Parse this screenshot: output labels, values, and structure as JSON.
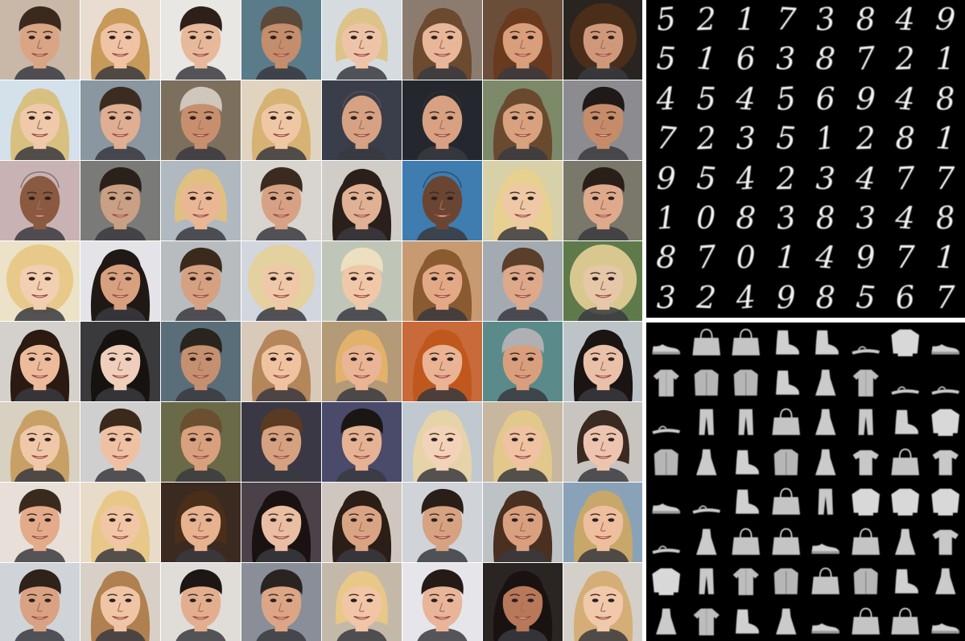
{
  "mnist_digits": [
    [
      "5",
      "2",
      "1",
      "7",
      "3",
      "8",
      "4",
      "9"
    ],
    [
      "5",
      "1",
      "6",
      "3",
      "8",
      "7",
      "2",
      "1"
    ],
    [
      "4",
      "5",
      "4",
      "5",
      "6",
      "9",
      "4",
      "8"
    ],
    [
      "7",
      "2",
      "3",
      "5",
      "1",
      "2",
      "8",
      "1"
    ],
    [
      "9",
      "5",
      "4",
      "2",
      "3",
      "4",
      "7",
      "7"
    ],
    [
      "1",
      "0",
      "8",
      "3",
      "8",
      "3",
      "4",
      "8"
    ],
    [
      "8",
      "7",
      "0",
      "1",
      "4",
      "9",
      "7",
      "1"
    ],
    [
      "3",
      "2",
      "4",
      "9",
      "8",
      "5",
      "6",
      "7"
    ]
  ],
  "fashion_items": [
    [
      "sneaker-icon",
      "bag-icon",
      "bag-icon",
      "ankle-boot-icon",
      "ankle-boot-icon",
      "sandal-icon",
      "pullover-icon",
      "sneaker-icon"
    ],
    [
      "shirt-icon",
      "coat-icon",
      "coat-icon",
      "ankle-boot-icon",
      "dress-icon",
      "shirt-icon",
      "sandal-icon",
      "sandal-icon"
    ],
    [
      "sandal-icon",
      "trouser-icon",
      "trouser-icon",
      "bag-icon",
      "dress-icon",
      "trouser-icon",
      "ankle-boot-icon",
      "pullover-icon"
    ],
    [
      "coat-icon",
      "dress-icon",
      "ankle-boot-icon",
      "coat-icon",
      "dress-icon",
      "tshirt-icon",
      "bag-icon",
      "tshirt-icon"
    ],
    [
      "sneaker-icon",
      "sandal-icon",
      "ankle-boot-icon",
      "bag-icon",
      "trouser-icon",
      "pullover-icon",
      "pullover-icon",
      "pullover-icon"
    ],
    [
      "sandal-icon",
      "dress-icon",
      "bag-icon",
      "bag-icon",
      "sneaker-icon",
      "bag-icon",
      "dress-icon",
      "tshirt-icon"
    ],
    [
      "pullover-icon",
      "trouser-icon",
      "shirt-icon",
      "coat-icon",
      "bag-icon",
      "coat-icon",
      "ankle-boot-icon",
      "dress-icon"
    ],
    [
      "dress-icon",
      "shirt-icon",
      "ankle-boot-icon",
      "dress-icon",
      "sneaker-icon",
      "bag-icon",
      "bag-icon",
      "sneaker-icon"
    ]
  ],
  "faces": [
    {
      "bg": "#c9b8a8",
      "skin": "#d9a585",
      "hair": "#3a2a1e",
      "hair_style": "short"
    },
    {
      "bg": "#e8ddd0",
      "skin": "#efc3a4",
      "hair": "#c79a5a",
      "hair_style": "long"
    },
    {
      "bg": "#e9e7e3",
      "skin": "#e7b99a",
      "hair": "#2e2019",
      "hair_style": "short"
    },
    {
      "bg": "#5a7c8a",
      "skin": "#c48d6c",
      "hair": "#5b4a3a",
      "hair_style": "short"
    },
    {
      "bg": "#d6dbe0",
      "skin": "#eec4a8",
      "hair": "#dcc488",
      "hair_style": "bob"
    },
    {
      "bg": "#8c7c70",
      "skin": "#e8b698",
      "hair": "#6b4a30",
      "hair_style": "long"
    },
    {
      "bg": "#6a4e3a",
      "skin": "#d99e7a",
      "hair": "#6a3a1e",
      "hair_style": "long"
    },
    {
      "bg": "#2a2420",
      "skin": "#d0987a",
      "hair": "#4a2e1a",
      "hair_style": "curly"
    },
    {
      "bg": "#d4e0ea",
      "skin": "#efc9a9",
      "hair": "#d8c080",
      "hair_style": "long"
    },
    {
      "bg": "#8a96a0",
      "skin": "#e0ae90",
      "hair": "#3b2c22",
      "hair_style": "short"
    },
    {
      "bg": "#7d6f5e",
      "skin": "#c88f6e",
      "hair": "#cfc6bc",
      "hair_style": "short"
    },
    {
      "bg": "#e0d4c0",
      "skin": "#f0c7a5",
      "hair": "#d7b373",
      "hair_style": "long"
    },
    {
      "bg": "#3a3e4a",
      "skin": "#d6a283",
      "hair": "#8a6a52",
      "hair_style": "bald"
    },
    {
      "bg": "#24282e",
      "skin": "#d7a182",
      "hair": "#4a3728",
      "hair_style": "bald"
    },
    {
      "bg": "#7c8a6a",
      "skin": "#d8a27e",
      "hair": "#6a4a2e",
      "hair_style": "long"
    },
    {
      "bg": "#8c8c90",
      "skin": "#c68c6a",
      "hair": "#1f1a18",
      "hair_style": "short"
    },
    {
      "bg": "#c8b2b4",
      "skin": "#8a5a40",
      "hair": "#1a1410",
      "hair_style": "bald"
    },
    {
      "bg": "#7a7a78",
      "skin": "#caa084",
      "hair": "#2b211b",
      "hair_style": "short"
    },
    {
      "bg": "#b0b8c0",
      "skin": "#eab795",
      "hair": "#e0c080",
      "hair_style": "bob"
    },
    {
      "bg": "#d8d4d0",
      "skin": "#d7a283",
      "hair": "#3a2a20",
      "hair_style": "short"
    },
    {
      "bg": "#d0ccc8",
      "skin": "#e0b194",
      "hair": "#2a1f1a",
      "hair_style": "long"
    },
    {
      "bg": "#3f7cb0",
      "skin": "#6a4532",
      "hair": "#120e0c",
      "hair_style": "bald"
    },
    {
      "bg": "#d8d0a8",
      "skin": "#efc9a5",
      "hair": "#e8d090",
      "hair_style": "long"
    },
    {
      "bg": "#7a786a",
      "skin": "#dfaa8c",
      "hair": "#2a1f18",
      "hair_style": "short"
    },
    {
      "bg": "#ece2c8",
      "skin": "#f2cfb0",
      "hair": "#e8c98a",
      "hair_style": "curly"
    },
    {
      "bg": "#e4e4e8",
      "skin": "#d7a07e",
      "hair": "#1f1815",
      "hair_style": "long"
    },
    {
      "bg": "#b8bcbf",
      "skin": "#d5a180",
      "hair": "#3a2a1c",
      "hair_style": "short"
    },
    {
      "bg": "#d2d6de",
      "skin": "#efc8a8",
      "hair": "#e4d1a0",
      "hair_style": "curly"
    },
    {
      "bg": "#bfc6b8",
      "skin": "#f0c8a8",
      "hair": "#ede0c0",
      "hair_style": "short"
    },
    {
      "bg": "#c89a72",
      "skin": "#e3a986",
      "hair": "#8a5a30",
      "hair_style": "long"
    },
    {
      "bg": "#a3aab2",
      "skin": "#dea98a",
      "hair": "#5a3f2a",
      "hair_style": "short"
    },
    {
      "bg": "#5f7a4a",
      "skin": "#e6c7a8",
      "hair": "#d8c890",
      "hair_style": "curly"
    },
    {
      "bg": "#d4d1cc",
      "skin": "#ebbb9c",
      "hair": "#2a1a12",
      "hair_style": "long"
    },
    {
      "bg": "#3a3a3c",
      "skin": "#efcfbb",
      "hair": "#151210",
      "hair_style": "long"
    },
    {
      "bg": "#5a6e7a",
      "skin": "#c59070",
      "hair": "#2a241e",
      "hair_style": "short"
    },
    {
      "bg": "#d8c9b8",
      "skin": "#f0c3a0",
      "hair": "#b4865a",
      "hair_style": "long"
    },
    {
      "bg": "#b59a78",
      "skin": "#eab595",
      "hair": "#e2b26a",
      "hair_style": "bob"
    },
    {
      "bg": "#c86a3a",
      "skin": "#eab393",
      "hair": "#c0581e",
      "hair_style": "long"
    },
    {
      "bg": "#5a8a8a",
      "skin": "#d99f7c",
      "hair": "#aeb0b4",
      "hair_style": "short"
    },
    {
      "bg": "#bcc4c8",
      "skin": "#e9c0a8",
      "hair": "#1a1412",
      "hair_style": "long"
    },
    {
      "bg": "#d8d0c0",
      "skin": "#f0c8a8",
      "hair": "#c8a066",
      "hair_style": "long"
    },
    {
      "bg": "#cfcfcf",
      "skin": "#eec1a2",
      "hair": "#3b2a1c",
      "hair_style": "short"
    },
    {
      "bg": "#6a6a48",
      "skin": "#d8a07c",
      "hair": "#6a5030",
      "hair_style": "short"
    },
    {
      "bg": "#3a3844",
      "skin": "#d6a180",
      "hair": "#5a3a22",
      "hair_style": "short"
    },
    {
      "bg": "#4a4a6a",
      "skin": "#e5b394",
      "hair": "#1a1614",
      "hair_style": "short"
    },
    {
      "bg": "#c0c8d0",
      "skin": "#f2d2b8",
      "hair": "#e6d3a8",
      "hair_style": "long"
    },
    {
      "bg": "#c7b6a0",
      "skin": "#efc2a2",
      "hair": "#e2c88a",
      "hair_style": "long"
    },
    {
      "bg": "#c8c4c0",
      "skin": "#ecc4b0",
      "hair": "#3a2a22",
      "hair_style": "bob"
    },
    {
      "bg": "#e8e0d8",
      "skin": "#e3ab8a",
      "hair": "#3a2a1e",
      "hair_style": "short"
    },
    {
      "bg": "#e8dcc8",
      "skin": "#f0c6a4",
      "hair": "#e8c888",
      "hair_style": "long"
    },
    {
      "bg": "#3a2a20",
      "skin": "#e6b290",
      "hair": "#4a2e1a",
      "hair_style": "bob"
    },
    {
      "bg": "#4a4248",
      "skin": "#e9bea3",
      "hair": "#1a1210",
      "hair_style": "long"
    },
    {
      "bg": "#cfc7bf",
      "skin": "#d9a484",
      "hair": "#2a1e16",
      "hair_style": "long"
    },
    {
      "bg": "#d0d4d8",
      "skin": "#d6a282",
      "hair": "#2a1e18",
      "hair_style": "short"
    },
    {
      "bg": "#bdc2c4",
      "skin": "#d9a080",
      "hair": "#4a3020",
      "hair_style": "long"
    },
    {
      "bg": "#8aa2b8",
      "skin": "#eebf9e",
      "hair": "#c7a86a",
      "hair_style": "long"
    },
    {
      "bg": "#d0d4d8",
      "skin": "#d9a282",
      "hair": "#2e2219",
      "hair_style": "short"
    },
    {
      "bg": "#d8d0c6",
      "skin": "#efc5a6",
      "hair": "#b08050",
      "hair_style": "long"
    },
    {
      "bg": "#e0dcd8",
      "skin": "#e3ae8e",
      "hair": "#1c1614",
      "hair_style": "short"
    },
    {
      "bg": "#8a8e98",
      "skin": "#dca586",
      "hair": "#2a2420",
      "hair_style": "short"
    },
    {
      "bg": "#c4b8a8",
      "skin": "#f0c6a6",
      "hair": "#e8c888",
      "hair_style": "bob"
    },
    {
      "bg": "#e6e6ea",
      "skin": "#e8b598",
      "hair": "#241a16",
      "hair_style": "short"
    },
    {
      "bg": "#2a2422",
      "skin": "#b8785a",
      "hair": "#1a1210",
      "hair_style": "long"
    },
    {
      "bg": "#d4cfc8",
      "skin": "#f0c8aa",
      "hair": "#d4ae76",
      "hair_style": "long"
    }
  ]
}
